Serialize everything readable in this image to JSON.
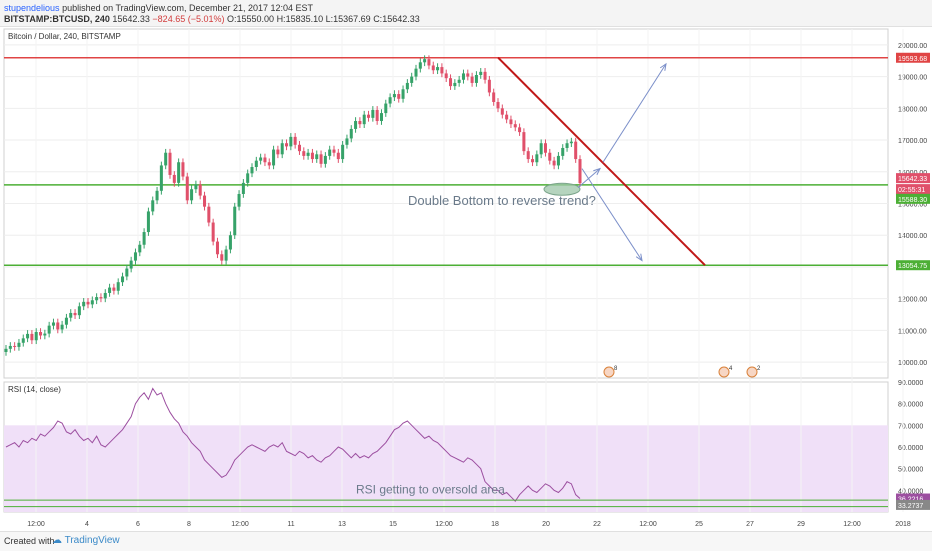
{
  "header": {
    "author": "stupendelious",
    "published": "published on TradingView.com, December 21, 2017 12:04 EST",
    "symbol": "BITSTAMP:BTCUSD, 240",
    "last": "15642.33",
    "change": "−824.65 (−5.01%)",
    "o": "O:15550.00",
    "h": "H:15835.10",
    "l": "L:15367.69",
    "c": "C:15642.33"
  },
  "footer": {
    "created_with": "Created with",
    "brand": "TradingView"
  },
  "colors": {
    "up": "#36a269",
    "down": "#e0506a",
    "resistance": "#e04444",
    "support": "#4caf35",
    "trend": "#c01818",
    "arrows": "#7b8fc9",
    "rsi": "#9c4fa0",
    "rsi_band": "#f0e0f8",
    "text_annot": "#6a7a8a"
  },
  "chart_data": [
    {
      "type": "candlestick",
      "title": "Bitcoin / Dollar, 240, BITSTAMP",
      "ylim": [
        9500,
        20500
      ],
      "yticks": [
        "20000.00",
        "19000.00",
        "18000.00",
        "17000.00",
        "16000.00",
        "15000.00",
        "14000.00",
        "13000.00",
        "12000.00",
        "11000.00",
        "10000.00"
      ],
      "xticks": [
        "12:00",
        "4",
        "6",
        "8",
        "12:00",
        "11",
        "13",
        "15",
        "12:00",
        "18",
        "20",
        "22",
        "12:00",
        "25",
        "27",
        "29",
        "12:00",
        "2018"
      ],
      "close_series": [
        10420,
        10510,
        10480,
        10610,
        10750,
        10890,
        10690,
        10950,
        10840,
        10900,
        11150,
        11250,
        11030,
        11180,
        11400,
        11550,
        11480,
        11760,
        11900,
        11820,
        11950,
        12050,
        12010,
        12180,
        12350,
        12250,
        12520,
        12700,
        12950,
        13200,
        13460,
        13700,
        14100,
        14750,
        15100,
        15400,
        16200,
        16600,
        15900,
        15650,
        16300,
        15850,
        15100,
        15450,
        15600,
        15250,
        14900,
        14400,
        13800,
        13400,
        13200,
        13550,
        14000,
        14900,
        15300,
        15650,
        15950,
        16150,
        16350,
        16450,
        16300,
        16200,
        16700,
        16550,
        16900,
        16800,
        17100,
        16850,
        16650,
        16500,
        16600,
        16400,
        16550,
        16250,
        16500,
        16700,
        16600,
        16400,
        16850,
        17050,
        17350,
        17600,
        17500,
        17800,
        17700,
        17950,
        17600,
        17850,
        18150,
        18350,
        18450,
        18300,
        18600,
        18800,
        19000,
        19250,
        19450,
        19550,
        19350,
        19200,
        19300,
        19100,
        18950,
        18700,
        18800,
        18900,
        19100,
        19000,
        18800,
        19050,
        19150,
        18900,
        18500,
        18200,
        18000,
        17800,
        17650,
        17500,
        17400,
        17250,
        16650,
        16400,
        16300,
        16550,
        16900,
        16600,
        16350,
        16200,
        16500,
        16750,
        16900,
        16950,
        16400,
        15642.33
      ]
    },
    {
      "type": "line",
      "title": "RSI (14, close)",
      "ylim": [
        30,
        90
      ],
      "yticks": [
        "90.0000",
        "80.0000",
        "70.0000",
        "60.0000",
        "50.0000",
        "40.0000"
      ],
      "band": [
        30,
        70
      ],
      "rsi_series": [
        60,
        61,
        62,
        60,
        63,
        62,
        64,
        63,
        66,
        65,
        67,
        69,
        72,
        71,
        67,
        66,
        68,
        65,
        63,
        64,
        62,
        65,
        61,
        60,
        62,
        64,
        66,
        68,
        71,
        74,
        80,
        83,
        85,
        82,
        87,
        84,
        85,
        80,
        76,
        73,
        71,
        67,
        65,
        62,
        60,
        58,
        54,
        52,
        50,
        48,
        46,
        47,
        50,
        54,
        56,
        58,
        60,
        61,
        60,
        59,
        58,
        60,
        61,
        60,
        62,
        58,
        57,
        56,
        58,
        57,
        55,
        56,
        54,
        53,
        55,
        56,
        58,
        60,
        59,
        57,
        55,
        57,
        55,
        56,
        55,
        57,
        58,
        60,
        62,
        65,
        68,
        69,
        71,
        72,
        70,
        68,
        66,
        64,
        65,
        63,
        62,
        60,
        58,
        56,
        55,
        54,
        53,
        55,
        54,
        52,
        50,
        44,
        42,
        40,
        40,
        38,
        39,
        37,
        35,
        38,
        40,
        42,
        40,
        39,
        41,
        43,
        42,
        40,
        39,
        41,
        44,
        43,
        38,
        36.22
      ]
    }
  ],
  "price_labels": {
    "resistance": "19593.68",
    "last": "15642.33",
    "countdown": "02:55:31",
    "support_upper": "15588.30",
    "support_lower": "13054.75"
  },
  "rsi_labels": {
    "current": "36.2216",
    "lower": "33.2737"
  },
  "annotations": {
    "price": "Double Bottom to reverse trend?",
    "rsi": "RSI getting to oversold area"
  },
  "event_badges": [
    "8",
    "4",
    "2"
  ]
}
